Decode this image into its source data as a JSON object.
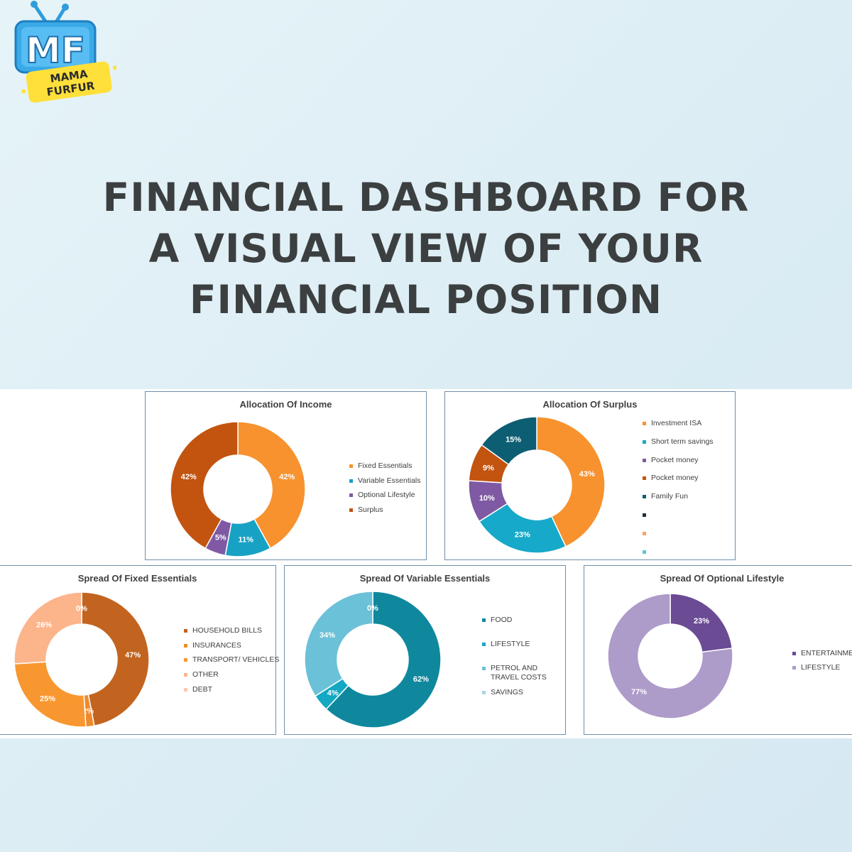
{
  "logo": {
    "initials": "MF",
    "line1": "MAMA",
    "line2": "FURFUR"
  },
  "headline": {
    "line1": "FINANCIAL DASHBOARD FOR",
    "line2": "A VISUAL VIEW OF YOUR",
    "line3": "FINANCIAL POSITION"
  },
  "chart_data": [
    {
      "type": "pie",
      "title": "Allocation Of Income",
      "categories": [
        "Fixed Essentials",
        "Variable Essentials",
        "Optional Lifestyle",
        "Surplus"
      ],
      "values": [
        42,
        11,
        5,
        42
      ],
      "labels": [
        "42%",
        "11%",
        "5%",
        "42%"
      ],
      "colors": [
        "#f7922e",
        "#17a2c4",
        "#7f59a3",
        "#c25410"
      ],
      "legend": "right"
    },
    {
      "type": "pie",
      "title": "Allocation Of Surplus",
      "categories": [
        "Investment ISA",
        "Short term savings",
        "Pocket money",
        "Pocket money",
        "Family Fun",
        "",
        "",
        ""
      ],
      "values": [
        43,
        23,
        10,
        9,
        15,
        0,
        0,
        0
      ],
      "labels": [
        "43%",
        "23%",
        "10%",
        "9%",
        "15%",
        "",
        "",
        ""
      ],
      "colors": [
        "#f7922e",
        "#17a9c9",
        "#7f59a3",
        "#c25410",
        "#0e5e73",
        "#20303c",
        "#f5a46a",
        "#5ec1dc"
      ],
      "legend": "right"
    },
    {
      "type": "pie",
      "title": "Spread Of Fixed Essentials",
      "categories": [
        "HOUSEHOLD BILLS",
        "INSURANCES",
        "TRANSPORT/ VEHICLES",
        "OTHER",
        "DEBT"
      ],
      "values": [
        47,
        2,
        25,
        26,
        0
      ],
      "labels": [
        "47%",
        "2%",
        "25%",
        "26%",
        "0%"
      ],
      "colors": [
        "#c2641f",
        "#ef8a2c",
        "#f8972f",
        "#fcb48a",
        "#fbc8b0"
      ],
      "legend": "right"
    },
    {
      "type": "pie",
      "title": "Spread Of Variable Essentials",
      "categories": [
        "FOOD",
        "LIFESTYLE",
        "PETROL AND TRAVEL COSTS",
        "SAVINGS"
      ],
      "values": [
        62,
        4,
        34,
        0
      ],
      "labels": [
        "62%",
        "4%",
        "34%",
        "0%"
      ],
      "colors": [
        "#0f889e",
        "#14a8c2",
        "#6bc1d8",
        "#a8d8e6"
      ],
      "legend": "right"
    },
    {
      "type": "pie",
      "title": "Spread Of Optional Lifestyle",
      "categories": [
        "ENTERTAINMENT",
        "LIFESTYLE"
      ],
      "values": [
        23,
        77
      ],
      "labels": [
        "23%",
        "77%"
      ],
      "colors": [
        "#6a4b94",
        "#ad9bc9"
      ],
      "legend": "right"
    }
  ]
}
